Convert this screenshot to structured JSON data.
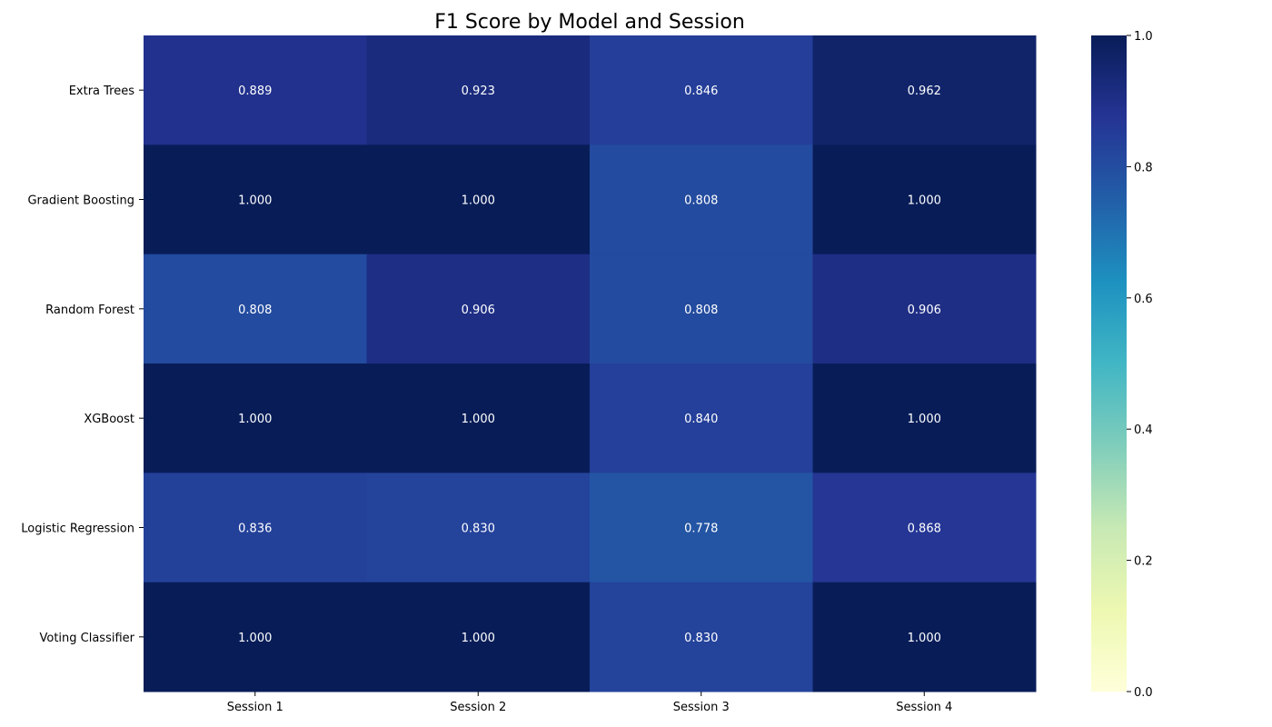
{
  "chart_data": {
    "type": "heatmap",
    "title": "F1 Score by Model and Session",
    "xlabel": "",
    "ylabel": "",
    "x_categories": [
      "Session 1",
      "Session 2",
      "Session 3",
      "Session 4"
    ],
    "y_categories": [
      "Extra Trees",
      "Gradient Boosting",
      "Random Forest",
      "XGBoost",
      "Logistic Regression",
      "Voting Classifier"
    ],
    "values": [
      [
        0.889,
        0.923,
        0.846,
        0.962
      ],
      [
        1.0,
        1.0,
        0.808,
        1.0
      ],
      [
        0.808,
        0.906,
        0.808,
        0.906
      ],
      [
        1.0,
        1.0,
        0.84,
        1.0
      ],
      [
        0.836,
        0.83,
        0.778,
        0.868
      ],
      [
        1.0,
        1.0,
        0.83,
        1.0
      ]
    ],
    "value_format": "3 decimals",
    "colorscale": "YlGnBu",
    "color_range": [
      0.0,
      1.0
    ],
    "colorbar_ticks": [
      0.0,
      0.2,
      0.4,
      0.6,
      0.8,
      1.0
    ],
    "colorbar_placement": "right",
    "grid": false
  }
}
